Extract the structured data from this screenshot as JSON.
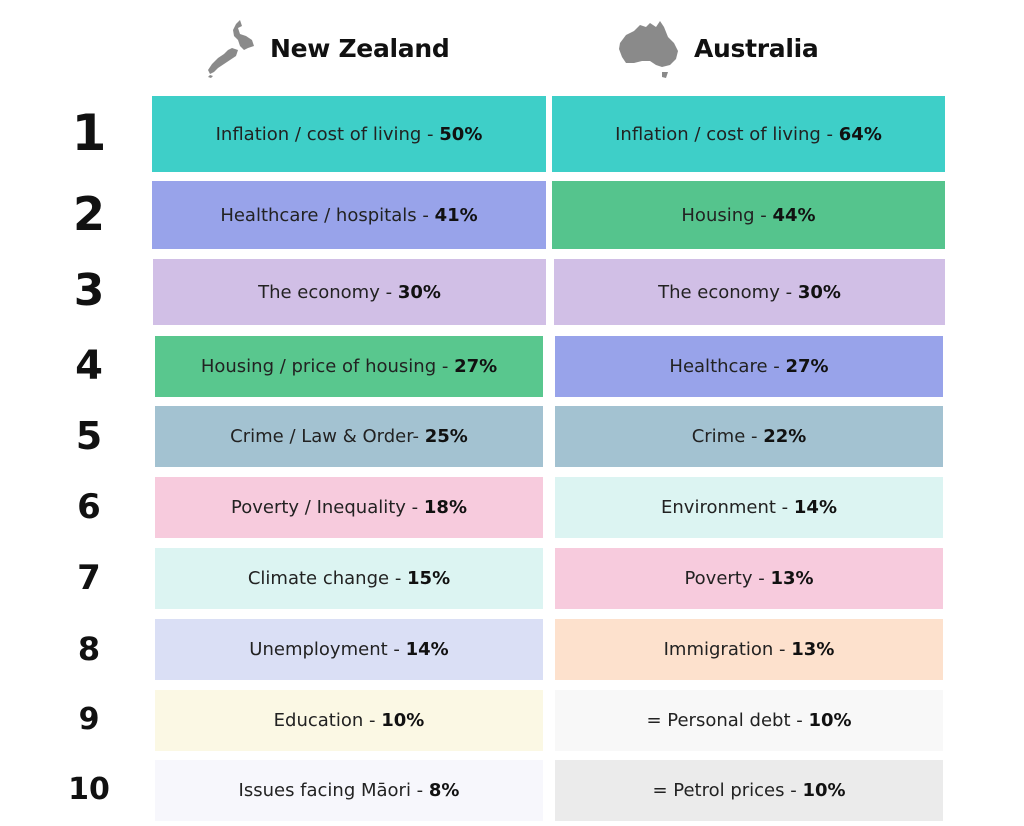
{
  "headers": {
    "nz": {
      "title": "New Zealand",
      "icon": "new-zealand-map-icon"
    },
    "au": {
      "title": "Australia",
      "icon": "australia-map-icon"
    }
  },
  "rows": [
    {
      "rank": "1",
      "nz": {
        "topic": "Inflation / cost of living - ",
        "pct": "50%",
        "color": "#3ecfc8"
      },
      "au": {
        "topic": "Inflation / cost of living - ",
        "pct": "64%",
        "color": "#3ecfc8"
      }
    },
    {
      "rank": "2",
      "nz": {
        "topic": "Healthcare / hospitals - ",
        "pct": "41%",
        "color": "#98a3ea"
      },
      "au": {
        "topic": "Housing - ",
        "pct": "44%",
        "color": "#55c48d"
      }
    },
    {
      "rank": "3",
      "nz": {
        "topic": "The economy - ",
        "pct": "30%",
        "color": "#d1bfe6"
      },
      "au": {
        "topic": "The economy - ",
        "pct": "30%",
        "color": "#d1bfe6"
      }
    },
    {
      "rank": "4",
      "nz": {
        "topic": "Housing / price of housing - ",
        "pct": "27%",
        "color": "#59c78e"
      },
      "au": {
        "topic": "Healthcare - ",
        "pct": "27%",
        "color": "#98a3ea"
      }
    },
    {
      "rank": "5",
      "nz": {
        "topic": "Crime / Law & Order- ",
        "pct": "25%",
        "color": "#a3c2d1"
      },
      "au": {
        "topic": "Crime - ",
        "pct": "22%",
        "color": "#a3c2d1"
      }
    },
    {
      "rank": "6",
      "nz": {
        "topic": "Poverty / Inequality - ",
        "pct": "18%",
        "color": "#f7cbdd"
      },
      "au": {
        "topic": "Environment - ",
        "pct": "14%",
        "color": "#dcf4f2"
      }
    },
    {
      "rank": "7",
      "nz": {
        "topic": "Climate change - ",
        "pct": "15%",
        "color": "#dcf4f2"
      },
      "au": {
        "topic": "Poverty - ",
        "pct": "13%",
        "color": "#f7cbdd"
      }
    },
    {
      "rank": "8",
      "nz": {
        "topic": "Unemployment - ",
        "pct": "14%",
        "color": "#dadff5"
      },
      "au": {
        "topic": "Immigration - ",
        "pct": "13%",
        "color": "#fde1cd"
      }
    },
    {
      "rank": "9",
      "nz": {
        "topic": "Education - ",
        "pct": "10%",
        "color": "#fbf8e4"
      },
      "au": {
        "topic": "= Personal debt - ",
        "pct": "10%",
        "color": "#f8f8f8"
      }
    },
    {
      "rank": "10",
      "nz": {
        "topic": "Issues facing Māori - ",
        "pct": "8%",
        "color": "#f7f7fc"
      },
      "au": {
        "topic": "= Petrol prices - ",
        "pct": "10%",
        "color": "#ebebeb"
      }
    }
  ]
}
